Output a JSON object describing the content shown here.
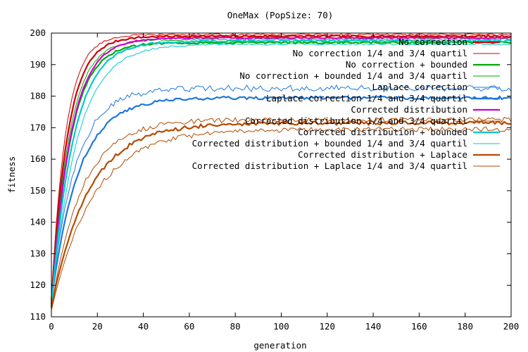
{
  "chart_data": {
    "type": "line",
    "title": "OneMax (PopSize: 70)",
    "xlabel": "generation",
    "ylabel": "fitness",
    "xlim": [
      0,
      200
    ],
    "ylim": [
      110,
      200
    ],
    "xticks": [
      "0",
      "20",
      "40",
      "60",
      "80",
      "100",
      "120",
      "140",
      "160",
      "180",
      "200"
    ],
    "yticks": [
      "110",
      "120",
      "130",
      "140",
      "150",
      "160",
      "170",
      "180",
      "190",
      "200"
    ],
    "grid": false,
    "legend_position": "top-right",
    "series": [
      {
        "name": "No correction",
        "color": "#cc0000",
        "thick": true,
        "start": 115,
        "plateau": 199,
        "k": 0.14,
        "noise": 0.3
      },
      {
        "name": "No correction 1/4 and 3/4 quartil",
        "color": "#cc0000",
        "thick": false,
        "start": 115,
        "plateau": 199.5,
        "k": 0.16,
        "noise": 0.3
      },
      {
        "name": "No correction + bounded",
        "color": "#00aa00",
        "thick": true,
        "start": 114,
        "plateau": 197,
        "k": 0.12,
        "noise": 0.3
      },
      {
        "name": "No correction + bounded 1/4 and 3/4 quartil",
        "color": "#00aa00",
        "thick": false,
        "start": 114,
        "plateau": 198,
        "k": 0.13,
        "noise": 0.3
      },
      {
        "name": "Laplace correction",
        "color": "#1e78dc",
        "thick": false,
        "start": 116,
        "plateau": 182.5,
        "k": 0.095,
        "noise": 1.0
      },
      {
        "name": "Laplace correction 1/4 and 3/4 quartil",
        "color": "#1e78dc",
        "thick": true,
        "start": 115,
        "plateau": 179.5,
        "k": 0.085,
        "noise": 0.5
      },
      {
        "name": "Corrected distribution",
        "color": "#cc00cc",
        "thick": true,
        "start": 113,
        "plateau": 198.5,
        "k": 0.12,
        "noise": 0.2
      },
      {
        "name": "Corrected distribution 1/4 and 3/4 quartil",
        "color": "#b44a00",
        "thick": false,
        "start": 113,
        "plateau": 172.5,
        "k": 0.075,
        "noise": 0.8
      },
      {
        "name": "Corrected distribution + bounded",
        "color": "#00c8d2",
        "thick": true,
        "start": 113,
        "plateau": 197.5,
        "k": 0.105,
        "noise": 0.3
      },
      {
        "name": "Corrected distribution + bounded 1/4 and 3/4 quartil",
        "color": "#00c8d2",
        "thick": false,
        "start": 113,
        "plateau": 196.5,
        "k": 0.09,
        "noise": 0.3
      },
      {
        "name": "Corrected distribution + Laplace",
        "color": "#b44a00",
        "thick": true,
        "start": 113,
        "plateau": 171.5,
        "k": 0.062,
        "noise": 0.6
      },
      {
        "name": "Corrected distribution + Laplace 1/4 and 3/4 quartil",
        "color": "#b44a00",
        "thick": false,
        "start": 112,
        "plateau": 169.5,
        "k": 0.055,
        "noise": 0.8
      }
    ]
  }
}
